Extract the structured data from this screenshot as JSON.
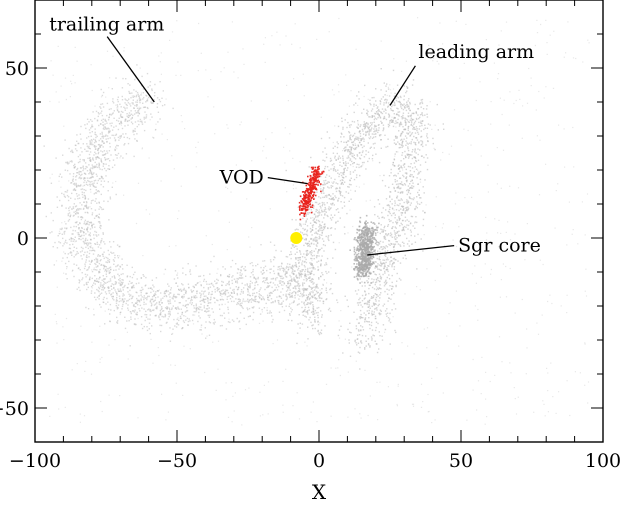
{
  "chart_data": {
    "type": "scatter",
    "title": "",
    "xlabel": "X",
    "ylabel": "",
    "xlim": [
      -100,
      100
    ],
    "ylim": [
      -60,
      70
    ],
    "x_ticks": [
      -100,
      -50,
      0,
      50,
      100
    ],
    "x_tick_labels": [
      "−100",
      "−50",
      "0",
      "50",
      "100"
    ],
    "y_ticks": [
      -50,
      0,
      50
    ],
    "y_tick_labels": [
      "−50",
      "0",
      "50"
    ],
    "grid": false,
    "legend": "none",
    "colors": {
      "stream": "#bdbdbd",
      "core": "#a9a9a9",
      "vod": "#e8231c",
      "sun": "#ffef00",
      "axis": "#000000"
    },
    "series": [
      {
        "description_key": "trailing-arm",
        "x": [
          -60,
          -75,
          -83,
          -84,
          -78,
          -62,
          -40,
          -18,
          -4
        ],
        "y": [
          41,
          33,
          18,
          2,
          -12,
          -19,
          -18,
          -14,
          -11
        ]
      },
      {
        "description_key": "leading-arm",
        "x": [
          -2,
          -5,
          0,
          10,
          22,
          30,
          33,
          30,
          22,
          16
        ],
        "y": [
          -25,
          -10,
          8,
          25,
          38,
          39,
          30,
          12,
          -8,
          -30
        ]
      },
      {
        "description_key": "vod",
        "x": [
          -6,
          -5,
          -4,
          -3,
          -2,
          -1
        ],
        "y": [
          8,
          11,
          13,
          15,
          17,
          20
        ]
      },
      {
        "description_key": "sgr-core",
        "x": [
          15,
          16,
          16,
          17
        ],
        "y": [
          -10,
          -5,
          0,
          3
        ]
      },
      {
        "description_key": "sun",
        "x": [
          -8
        ],
        "y": [
          0
        ]
      }
    ],
    "annotations": [
      {
        "text": "trailing arm",
        "label_x": -95,
        "label_y": 61,
        "arrow_to": [
          -58,
          40
        ]
      },
      {
        "text": "leading arm",
        "label_x": 35,
        "label_y": 53,
        "arrow_to": [
          25,
          39
        ]
      },
      {
        "text": "VOD",
        "label_x": -35,
        "label_y": 16,
        "arrow_to": [
          -4,
          16
        ]
      },
      {
        "text": "Sgr core",
        "label_x": 49,
        "label_y": -4,
        "arrow_to": [
          17,
          -5
        ]
      }
    ]
  }
}
